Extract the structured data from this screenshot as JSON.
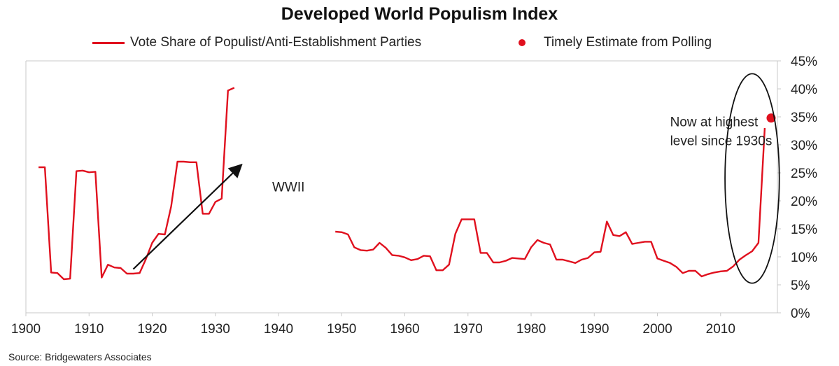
{
  "title": "Developed World Populism Index",
  "source": "Source: Bridgewaters Associates",
  "chart_data": {
    "type": "line",
    "title": "Developed World Populism Index",
    "xlim": [
      1900,
      2019
    ],
    "ylim": [
      0,
      45
    ],
    "y_axis_position": "right",
    "legend_position": "top",
    "grid": false,
    "x_ticks": [
      "1900",
      "1910",
      "1920",
      "1930",
      "1940",
      "1950",
      "1960",
      "1970",
      "1980",
      "1990",
      "2000",
      "2010"
    ],
    "y_ticks": [
      "0%",
      "5%",
      "10%",
      "15%",
      "20%",
      "25%",
      "30%",
      "35%",
      "40%",
      "45%"
    ],
    "series": [
      {
        "name": "Vote Share of Populist/Anti-Establishment Parties",
        "color": "#e0101e",
        "segments": [
          [
            [
              1902,
              26
            ],
            [
              1903,
              26
            ],
            [
              1904,
              7.2
            ],
            [
              1905,
              7.1
            ],
            [
              1906,
              6.0
            ],
            [
              1907,
              6.1
            ],
            [
              1908,
              25.3
            ],
            [
              1909,
              25.4
            ],
            [
              1910,
              25.1
            ],
            [
              1911,
              25.2
            ],
            [
              1912,
              6.3
            ],
            [
              1913,
              8.6
            ],
            [
              1914,
              8.1
            ],
            [
              1915,
              8.0
            ],
            [
              1916,
              7.0
            ],
            [
              1917,
              7.0
            ],
            [
              1918,
              7.1
            ],
            [
              1919,
              9.6
            ],
            [
              1920,
              12.5
            ],
            [
              1921,
              14.1
            ],
            [
              1922,
              14.0
            ],
            [
              1923,
              19.0
            ],
            [
              1924,
              27.0
            ],
            [
              1925,
              27.0
            ],
            [
              1926,
              26.9
            ],
            [
              1927,
              26.9
            ],
            [
              1928,
              17.7
            ],
            [
              1929,
              17.7
            ],
            [
              1930,
              19.8
            ],
            [
              1931,
              20.4
            ],
            [
              1932,
              39.7
            ],
            [
              1933,
              40.2
            ]
          ],
          [
            [
              1949,
              14.5
            ],
            [
              1950,
              14.4
            ],
            [
              1951,
              14.0
            ],
            [
              1952,
              11.7
            ],
            [
              1953,
              11.2
            ],
            [
              1954,
              11.1
            ],
            [
              1955,
              11.3
            ],
            [
              1956,
              12.5
            ],
            [
              1957,
              11.6
            ],
            [
              1958,
              10.3
            ],
            [
              1959,
              10.2
            ],
            [
              1960,
              9.9
            ],
            [
              1961,
              9.4
            ],
            [
              1962,
              9.6
            ],
            [
              1963,
              10.2
            ],
            [
              1964,
              10.1
            ],
            [
              1965,
              7.6
            ],
            [
              1966,
              7.6
            ],
            [
              1967,
              8.6
            ],
            [
              1968,
              14.1
            ],
            [
              1969,
              16.7
            ],
            [
              1970,
              16.7
            ],
            [
              1971,
              16.7
            ],
            [
              1972,
              10.7
            ],
            [
              1973,
              10.7
            ],
            [
              1974,
              9.0
            ],
            [
              1975,
              9.0
            ],
            [
              1976,
              9.3
            ],
            [
              1977,
              9.8
            ],
            [
              1978,
              9.7
            ],
            [
              1979,
              9.6
            ],
            [
              1980,
              11.7
            ],
            [
              1981,
              13.0
            ],
            [
              1982,
              12.5
            ],
            [
              1983,
              12.2
            ],
            [
              1984,
              9.5
            ],
            [
              1985,
              9.5
            ],
            [
              1986,
              9.2
            ],
            [
              1987,
              8.9
            ],
            [
              1988,
              9.5
            ],
            [
              1989,
              9.8
            ],
            [
              1990,
              10.8
            ],
            [
              1991,
              10.9
            ],
            [
              1992,
              16.3
            ],
            [
              1993,
              13.9
            ],
            [
              1994,
              13.7
            ],
            [
              1995,
              14.4
            ],
            [
              1996,
              12.3
            ],
            [
              1997,
              12.5
            ],
            [
              1998,
              12.7
            ],
            [
              1999,
              12.7
            ],
            [
              2000,
              9.7
            ],
            [
              2001,
              9.3
            ],
            [
              2002,
              8.9
            ],
            [
              2003,
              8.2
            ],
            [
              2004,
              7.1
            ],
            [
              2005,
              7.5
            ],
            [
              2006,
              7.5
            ],
            [
              2007,
              6.5
            ],
            [
              2008,
              6.9
            ],
            [
              2009,
              7.2
            ],
            [
              2010,
              7.4
            ],
            [
              2011,
              7.5
            ],
            [
              2012,
              8.3
            ],
            [
              2013,
              9.5
            ],
            [
              2014,
              10.3
            ],
            [
              2015,
              11.0
            ],
            [
              2016,
              12.5
            ],
            [
              2017,
              33.0
            ]
          ]
        ]
      },
      {
        "name": "Timely Estimate from Polling",
        "color": "#e0101e",
        "points": [
          [
            2018,
            34.8
          ]
        ]
      }
    ],
    "annotations": {
      "arrow": {
        "from": [
          1917,
          7.8
        ],
        "to": [
          1934,
          26.3
        ],
        "color": "#111111"
      },
      "wwii_label": {
        "text": "WWII",
        "at": [
          1939,
          21.7
        ]
      },
      "callout": {
        "lines": [
          "Now at highest",
          "level since 1930s"
        ],
        "at": [
          2002,
          33.3
        ]
      },
      "ellipse": {
        "center": [
          2015,
          24
        ],
        "rx_years": 4.3,
        "ry_percent": 18.7,
        "color": "#111111"
      }
    }
  }
}
